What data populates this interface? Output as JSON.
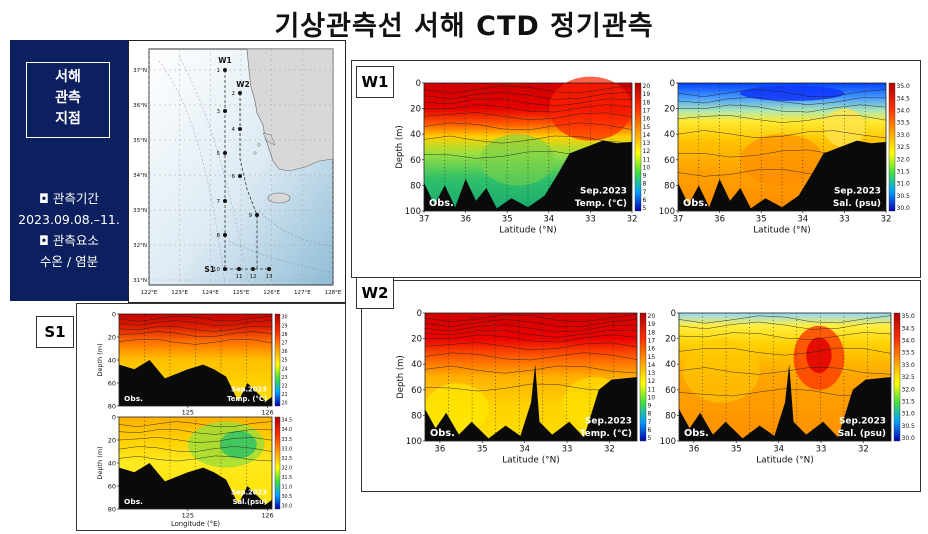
{
  "title": "기상관측선 서해 CTD 정기관측",
  "left_panel": {
    "heading_lines": [
      "서해",
      "관측",
      "지점"
    ],
    "period_label": "◘ 관측기간",
    "period_value": "2023.09.08.–11.",
    "elements_label": "◘ 관측요소",
    "elements_value": "수온 / 염분"
  },
  "map": {
    "lat_ticks": [
      "37°N",
      "36°N",
      "35°N",
      "34°N",
      "33°N",
      "32°N",
      "31°N"
    ],
    "lon_ticks": [
      "122°E",
      "123°E",
      "124°E",
      "125°E",
      "126°E",
      "127°E",
      "128°E"
    ],
    "line_labels": [
      "W1",
      "W2",
      "S1"
    ],
    "w1_station_labels": [
      "1",
      "3",
      "5",
      "7",
      "8",
      "10"
    ],
    "w2_station_labels": [
      "2",
      "4",
      "6",
      "9"
    ],
    "s1_station_labels": [
      "11",
      "12",
      "13"
    ]
  },
  "section_tags": [
    "W1",
    "W2",
    "S1"
  ],
  "chart_data": [
    {
      "type": "heatmap",
      "line": "W1",
      "variable": "Temp. (°C)",
      "caption_source": "Obs.",
      "caption_date": "Sep.2023",
      "x": [
        37,
        36,
        35,
        34,
        33,
        32
      ],
      "xlabel": "Latitude (°N)",
      "ylabel": "Depth (m)",
      "y_ticks": [
        0,
        20,
        40,
        60,
        80,
        100
      ],
      "ylim": [
        100,
        0
      ],
      "colorbar_ticks": [
        "20",
        "19",
        "18",
        "17",
        "16",
        "15",
        "14",
        "13",
        "12",
        "11",
        "10",
        "9",
        "8",
        "7",
        "6",
        "5"
      ],
      "colorbar_range": [
        5,
        20
      ]
    },
    {
      "type": "heatmap",
      "line": "W1",
      "variable": "Sal. (psu)",
      "caption_source": "Obs.",
      "caption_date": "Sep.2023",
      "x": [
        37,
        36,
        35,
        34,
        33,
        32
      ],
      "xlabel": "Latitude (°N)",
      "y_ticks": [
        0,
        20,
        40,
        60,
        80,
        100
      ],
      "ylim": [
        100,
        0
      ],
      "colorbar_ticks": [
        "35.0",
        "34.5",
        "34.0",
        "33.5",
        "33.0",
        "32.5",
        "32.0",
        "31.5",
        "31.0",
        "30.5",
        "30.0"
      ],
      "colorbar_range": [
        30,
        35
      ]
    },
    {
      "type": "heatmap",
      "line": "W2",
      "variable": "Temp. (°C)",
      "caption_source": "Obs.",
      "caption_date": "Sep.2023",
      "x": [
        36,
        35,
        34,
        33,
        32
      ],
      "xlabel": "Latitude (°N)",
      "ylabel": "Depth (m)",
      "y_ticks": [
        0,
        20,
        40,
        60,
        80,
        100
      ],
      "ylim": [
        100,
        0
      ],
      "colorbar_ticks": [
        "20",
        "19",
        "18",
        "17",
        "16",
        "15",
        "14",
        "13",
        "12",
        "11",
        "10",
        "9",
        "8",
        "7",
        "6",
        "5"
      ],
      "colorbar_range": [
        5,
        20
      ]
    },
    {
      "type": "heatmap",
      "line": "W2",
      "variable": "Sal. (psu)",
      "caption_source": "Obs.",
      "caption_date": "Sep.2023",
      "x": [
        36,
        35,
        34,
        33,
        32
      ],
      "xlabel": "Latitude (°N)",
      "y_ticks": [
        0,
        20,
        40,
        60,
        80,
        100
      ],
      "ylim": [
        100,
        0
      ],
      "colorbar_ticks": [
        "35.0",
        "34.5",
        "34.0",
        "33.5",
        "33.0",
        "32.5",
        "32.0",
        "31.5",
        "31.0",
        "30.5",
        "30.0"
      ],
      "colorbar_range": [
        30,
        35
      ]
    },
    {
      "type": "heatmap",
      "line": "S1",
      "variable": "Temp. (°C)",
      "caption_source": "Obs.",
      "caption_date": "Sep.2023",
      "x": [
        125,
        126
      ],
      "ylabel": "Depth (m)",
      "y_ticks": [
        0,
        20,
        40,
        60,
        80
      ],
      "ylim": [
        80,
        0
      ],
      "colorbar_ticks": [
        "30",
        "29",
        "28",
        "27",
        "26",
        "25",
        "24",
        "23",
        "22",
        "21",
        "20"
      ],
      "colorbar_range": [
        20,
        30
      ]
    },
    {
      "type": "heatmap",
      "line": "S1",
      "variable": "Sal.(psu)",
      "caption_source": "Obs.",
      "caption_date": "Sep.2023",
      "x": [
        125,
        126
      ],
      "xlabel": "Longitude (°E)",
      "ylabel": "Depth (m)",
      "y_ticks": [
        0,
        20,
        40,
        60,
        80
      ],
      "ylim": [
        80,
        0
      ],
      "colorbar_ticks": [
        "34.5",
        "34.0",
        "33.5",
        "33.0",
        "32.5",
        "32.0",
        "31.5",
        "31.0",
        "30.5",
        "30.0"
      ],
      "colorbar_range": [
        30,
        34.5
      ]
    }
  ]
}
